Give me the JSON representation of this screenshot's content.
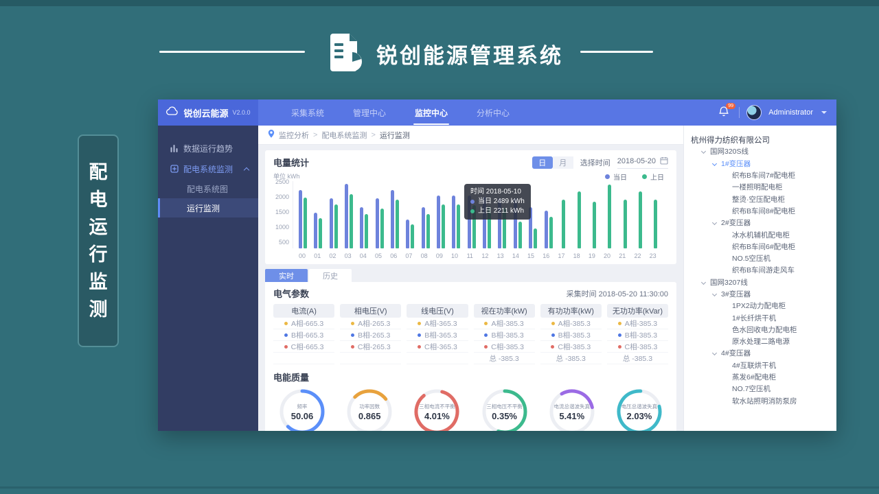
{
  "page": {
    "title": "锐创能源管理系统",
    "side_tag_chars": [
      "配",
      "电",
      "运",
      "行",
      "监",
      "测"
    ]
  },
  "window": {
    "logo": {
      "text": "锐创云能源",
      "version": "V2.0.0"
    },
    "nav": {
      "items": [
        {
          "label": "采集系统",
          "active": false
        },
        {
          "label": "管理中心",
          "active": false
        },
        {
          "label": "监控中心",
          "active": true
        },
        {
          "label": "分析中心",
          "active": false
        }
      ]
    },
    "user": {
      "name": "Administrator",
      "badge": "99"
    },
    "sidebar": {
      "items": [
        {
          "label": "数据运行趋势",
          "icon": "trend-chart-icon",
          "level": 0
        },
        {
          "label": "配电系统监测",
          "icon": "grid-icon",
          "level": 0,
          "highlight": true,
          "expanded": true
        },
        {
          "label": "配电系统图",
          "level": 1
        },
        {
          "label": "运行监测",
          "level": 1,
          "active": true
        }
      ]
    },
    "breadcrumb": {
      "parts": [
        "监控分析",
        "配电系统监测",
        "运行监测"
      ]
    },
    "stats_card": {
      "title": "电量统计",
      "toggle": {
        "day": "日",
        "month": "月",
        "active": "day"
      },
      "date_label": "选择时间",
      "date_value": "2018-05-20",
      "unit_label": "单位 kWh",
      "tooltip": {
        "time_line": "时间 2018-05-10",
        "rows": [
          {
            "label": "当日",
            "value": "2489 kWh",
            "color": "#6e83dc"
          },
          {
            "label": "上日",
            "value": "2211 kWh",
            "color": "#3cba8d"
          }
        ]
      }
    },
    "tabs": [
      {
        "label": "实时",
        "active": true
      },
      {
        "label": "历史",
        "active": false
      }
    ],
    "params_card": {
      "title": "电气参数",
      "collect_time_label": "采集时间",
      "collect_time": "2018-05-20 11:30:00",
      "columns": [
        {
          "header": "电流(A)",
          "rows": [
            {
              "text": "A相-665.3",
              "dot": "#ebb844"
            },
            {
              "text": "B相-665.3",
              "dot": "#4f77e3"
            },
            {
              "text": "C相-665.3",
              "dot": "#e06c65"
            },
            {
              "text": "",
              "dot": ""
            }
          ]
        },
        {
          "header": "相电压(V)",
          "rows": [
            {
              "text": "A相-265.3",
              "dot": "#ebb844"
            },
            {
              "text": "B相-265.3",
              "dot": "#4f77e3"
            },
            {
              "text": "C相-265.3",
              "dot": "#e06c65"
            },
            {
              "text": "",
              "dot": ""
            }
          ]
        },
        {
          "header": "线电压(V)",
          "rows": [
            {
              "text": "A相-365.3",
              "dot": "#ebb844"
            },
            {
              "text": "B相-365.3",
              "dot": "#4f77e3"
            },
            {
              "text": "C相-365.3",
              "dot": "#e06c65"
            },
            {
              "text": "",
              "dot": ""
            }
          ]
        },
        {
          "header": "视在功率(kW)",
          "rows": [
            {
              "text": "A相-385.3",
              "dot": "#ebb844"
            },
            {
              "text": "B相-385.3",
              "dot": "#4f77e3"
            },
            {
              "text": "C相-385.3",
              "dot": "#e06c65"
            },
            {
              "text": "总 -385.3",
              "dot": ""
            }
          ]
        },
        {
          "header": "有功功率(kW)",
          "rows": [
            {
              "text": "A相-385.3",
              "dot": "#ebb844"
            },
            {
              "text": "B相-385.3",
              "dot": "#4f77e3"
            },
            {
              "text": "C相-385.3",
              "dot": "#e06c65"
            },
            {
              "text": "总 -385.3",
              "dot": ""
            }
          ]
        },
        {
          "header": "无功功率(kVar)",
          "rows": [
            {
              "text": "A相-385.3",
              "dot": "#ebb844"
            },
            {
              "text": "B相-385.3",
              "dot": "#4f77e3"
            },
            {
              "text": "C相-385.3",
              "dot": "#e06c65"
            },
            {
              "text": "总 -385.3",
              "dot": ""
            }
          ]
        }
      ]
    },
    "quality": {
      "title": "电能质量",
      "gauges": [
        {
          "name": "频率",
          "value": "50.06",
          "color": "#5b8ff9",
          "arc": 0.62,
          "rotate": -90
        },
        {
          "name": "功率因数",
          "value": "0.865",
          "color": "#e8a23d",
          "arc": 0.27,
          "rotate": -135
        },
        {
          "name": "三相电流不平衡",
          "value": "4.01%",
          "color": "#e06c65",
          "arc": 0.85,
          "rotate": -75
        },
        {
          "name": "三相电压不平衡",
          "value": "0.35%",
          "color": "#3cba8d",
          "arc": 0.55,
          "rotate": -90
        },
        {
          "name": "电流总谐波失真",
          "value": "5.41%",
          "color": "#9b6be5",
          "arc": 0.3,
          "rotate": -120
        },
        {
          "name": "电压总谐波失真",
          "value": "2.03%",
          "color": "#3fb9c9",
          "arc": 0.8,
          "rotate": -15
        }
      ]
    },
    "tree": {
      "items": [
        {
          "label": "杭州得力纺织有限公司",
          "level": 0,
          "arrow": false,
          "root": true
        },
        {
          "label": "国网320S线",
          "level": 1,
          "arrow": true
        },
        {
          "label": "1#变压器",
          "level": 2,
          "arrow": true,
          "active": true
        },
        {
          "label": "织布B车间7#配电柜",
          "level": 3,
          "arrow": false
        },
        {
          "label": "一楼照明配电柜",
          "level": 3,
          "arrow": false
        },
        {
          "label": "整烫·空压配电柜",
          "level": 3,
          "arrow": false
        },
        {
          "label": "织布B车间8#配电柜",
          "level": 3,
          "arrow": false
        },
        {
          "label": "2#变压器",
          "level": 2,
          "arrow": true
        },
        {
          "label": "冰水机辅机配电柜",
          "level": 3,
          "arrow": false
        },
        {
          "label": "织布B车间6#配电柜",
          "level": 3,
          "arrow": false
        },
        {
          "label": "NO.5空压机",
          "level": 3,
          "arrow": false
        },
        {
          "label": "织布B车间游走风车",
          "level": 3,
          "arrow": false
        },
        {
          "label": "国网3207线",
          "level": 1,
          "arrow": true
        },
        {
          "label": "3#变压器",
          "level": 2,
          "arrow": true
        },
        {
          "label": "1PX2动力配电柜",
          "level": 3,
          "arrow": false
        },
        {
          "label": "1#长纤烘干机",
          "level": 3,
          "arrow": false
        },
        {
          "label": "色水回收电力配电柜",
          "level": 3,
          "arrow": false
        },
        {
          "label": "原水处理二路电源",
          "level": 3,
          "arrow": false
        },
        {
          "label": "4#变压器",
          "level": 2,
          "arrow": true
        },
        {
          "label": "4#互联烘干机",
          "level": 3,
          "arrow": false
        },
        {
          "label": "蒸发6#配电柜",
          "level": 3,
          "arrow": false
        },
        {
          "label": "NO.7空压机",
          "level": 3,
          "arrow": false
        },
        {
          "label": "软水站照明消防泵房",
          "level": 3,
          "arrow": false
        }
      ]
    }
  },
  "chart_data": {
    "type": "bar",
    "title": "电量统计",
    "ylabel": "单位 kWh",
    "ylim": [
      500,
      2500
    ],
    "yticks": [
      500,
      1000,
      1500,
      2000,
      2500
    ],
    "x": [
      "00",
      "01",
      "02",
      "03",
      "04",
      "05",
      "06",
      "07",
      "08",
      "09",
      "10",
      "11",
      "12",
      "13",
      "14",
      "15",
      "16",
      "17",
      "18",
      "19",
      "20",
      "21",
      "22",
      "23"
    ],
    "legend_position": "top-right",
    "grid": false,
    "series": [
      {
        "name": "当日",
        "color": "#6e83dc",
        "values": [
          2300,
          1600,
          2050,
          2500,
          1780,
          2060,
          2300,
          1400,
          1780,
          2130,
          2130,
          2130,
          2100,
          2060,
          2060,
          1780,
          1670,
          null,
          null,
          null,
          null,
          null,
          null,
          null
        ]
      },
      {
        "name": "上日",
        "color": "#3cba8d",
        "values": [
          2080,
          1430,
          1870,
          2190,
          1560,
          1740,
          2010,
          1250,
          1560,
          1860,
          1860,
          1850,
          1800,
          1750,
          1320,
          1110,
          1480,
          2020,
          2260,
          1950,
          2480,
          2020,
          2260,
          2020
        ]
      }
    ]
  }
}
